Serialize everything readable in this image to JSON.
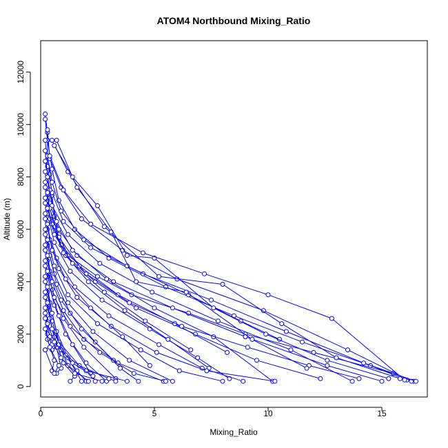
{
  "chart_data": {
    "type": "line",
    "title": "ATOM4 Northbound Mixing_Ratio",
    "xlabel": "Mixing_Ratio",
    "ylabel": "Altitude (m)",
    "xlim": [
      0,
      17
    ],
    "ylim": [
      -400,
      13200
    ],
    "xticks": [
      0,
      5,
      10,
      15
    ],
    "yticks": [
      0,
      2000,
      4000,
      6000,
      8000,
      10000,
      12000
    ],
    "color": "#0000FF",
    "markers": "open-circle",
    "grid": false,
    "series": [
      {
        "x": [
          0.2,
          0.3,
          0.3,
          0.4,
          0.5,
          0.6,
          0.8,
          1.2,
          2.5,
          4.0,
          6.5,
          9.0,
          12.0,
          15.5,
          16.4
        ],
        "y": [
          10400,
          9700,
          8800,
          8100,
          7300,
          6500,
          5800,
          5000,
          4200,
          3500,
          2800,
          2000,
          1300,
          500,
          200
        ]
      },
      {
        "x": [
          0.2,
          0.3,
          0.5,
          0.8,
          1.5,
          3.0,
          5.5,
          8.5,
          11.5,
          14.5,
          16.1
        ],
        "y": [
          10200,
          9400,
          8300,
          7100,
          6000,
          4900,
          3800,
          2700,
          1700,
          800,
          250
        ]
      },
      {
        "x": [
          0.3,
          0.4,
          0.9,
          1.8,
          3.6,
          6.0,
          9.8,
          13.5,
          16.3
        ],
        "y": [
          9800,
          8700,
          7600,
          6400,
          5200,
          4100,
          2900,
          1400,
          200
        ]
      },
      {
        "x": [
          0.2,
          0.3,
          0.5,
          1.0,
          2.2,
          4.5,
          7.5,
          10.8,
          14.2,
          16.5
        ],
        "y": [
          9400,
          8400,
          7400,
          6300,
          5300,
          4300,
          3300,
          2100,
          900,
          200
        ]
      },
      {
        "x": [
          0.2,
          0.3,
          0.4,
          0.8,
          1.6,
          3.2,
          5.8,
          9.0,
          12.6,
          15.0
        ],
        "y": [
          9000,
          8000,
          7000,
          6000,
          5000,
          4000,
          3000,
          1900,
          800,
          200
        ]
      },
      {
        "x": [
          0.3,
          0.5,
          0.9,
          1.9,
          3.8,
          6.5,
          8.8,
          10.5
        ],
        "y": [
          8800,
          7800,
          6700,
          5600,
          4600,
          3500,
          2500,
          1800
        ]
      },
      {
        "x": [
          0.2,
          0.4,
          0.7,
          1.4,
          2.9,
          5.0,
          7.6,
          10.2
        ],
        "y": [
          8600,
          7500,
          6300,
          5200,
          4100,
          3000,
          1900,
          200
        ]
      },
      {
        "x": [
          0.2,
          0.3,
          0.6,
          1.1,
          2.4,
          4.2,
          6.8,
          9.5,
          12.3
        ],
        "y": [
          8200,
          7200,
          6100,
          5000,
          4000,
          3000,
          2000,
          1000,
          300
        ]
      },
      {
        "x": [
          0.3,
          0.5,
          1.2,
          2.6,
          4.9,
          7.8,
          11.0,
          13.7
        ],
        "y": [
          8000,
          6900,
          5800,
          4700,
          3600,
          2500,
          1400,
          200
        ]
      },
      {
        "x": [
          0.2,
          0.4,
          0.8,
          1.7,
          3.4,
          5.9,
          8.2
        ],
        "y": [
          7800,
          6800,
          5700,
          4600,
          3500,
          2400,
          1300
        ]
      },
      {
        "x": [
          0.2,
          0.3,
          0.6,
          1.3,
          2.7,
          4.8,
          6.9,
          8.3
        ],
        "y": [
          7600,
          6600,
          5500,
          4400,
          3300,
          2200,
          1100,
          300
        ]
      },
      {
        "x": [
          0.3,
          0.4,
          0.9,
          2.0,
          3.9,
          6.2,
          9.1,
          11.8,
          14.0
        ],
        "y": [
          7400,
          6400,
          5400,
          4300,
          3200,
          2300,
          1500,
          800,
          300
        ]
      },
      {
        "x": [
          0.2,
          0.5,
          1.0,
          2.1,
          3.7,
          5.6,
          7.4
        ],
        "y": [
          7200,
          6200,
          5100,
          4000,
          2900,
          1800,
          700
        ]
      },
      {
        "x": [
          0.2,
          0.3,
          0.7,
          1.5,
          3.0,
          5.2,
          7.1,
          8.9
        ],
        "y": [
          7000,
          6000,
          4900,
          3800,
          2700,
          1600,
          700,
          200
        ]
      },
      {
        "x": [
          0.3,
          0.6,
          1.4,
          2.8,
          4.6,
          6.6
        ],
        "y": [
          6800,
          5800,
          4700,
          3600,
          2500,
          1400
        ]
      },
      {
        "x": [
          0.2,
          0.4,
          0.8,
          1.6,
          3.1,
          5.1,
          7.3,
          10.3
        ],
        "y": [
          6600,
          5600,
          4500,
          3400,
          2300,
          1300,
          600,
          200
        ]
      },
      {
        "x": [
          0.2,
          0.3,
          0.6,
          1.2,
          2.3,
          3.9,
          5.8
        ],
        "y": [
          6400,
          5400,
          4300,
          3200,
          2100,
          1000,
          200
        ]
      },
      {
        "x": [
          0.3,
          0.5,
          1.1,
          2.2,
          3.6,
          4.8
        ],
        "y": [
          6200,
          5200,
          4100,
          3000,
          1900,
          800
        ]
      },
      {
        "x": [
          0.2,
          0.4,
          0.7,
          1.3,
          2.4,
          3.5,
          4.3
        ],
        "y": [
          6000,
          5000,
          3900,
          2800,
          1700,
          700,
          200
        ]
      },
      {
        "x": [
          0.2,
          0.3,
          0.5,
          1.0,
          1.9,
          3.3
        ],
        "y": [
          5800,
          4800,
          3700,
          2600,
          1500,
          300
        ]
      },
      {
        "x": [
          0.3,
          0.6,
          1.2,
          2.5,
          4.4,
          6.1,
          8.0
        ],
        "y": [
          5600,
          4600,
          3500,
          2400,
          1400,
          600,
          200
        ]
      },
      {
        "x": [
          0.2,
          0.4,
          0.9,
          1.8,
          3.2
        ],
        "y": [
          5400,
          4400,
          3300,
          2200,
          1000
        ]
      },
      {
        "x": [
          0.2,
          0.3,
          0.6,
          1.1,
          2.0,
          2.9
        ],
        "y": [
          5200,
          4200,
          3100,
          2000,
          900,
          200
        ]
      },
      {
        "x": [
          0.3,
          0.5,
          1.0,
          1.9,
          3.4,
          5.4
        ],
        "y": [
          5000,
          4000,
          2900,
          1800,
          900,
          200
        ]
      },
      {
        "x": [
          0.2,
          0.4,
          0.8,
          1.4,
          2.2
        ],
        "y": [
          4800,
          3800,
          2700,
          1600,
          500
        ]
      },
      {
        "x": [
          0.2,
          0.3,
          0.5,
          0.9,
          1.6,
          2.0
        ],
        "y": [
          4600,
          3600,
          2500,
          1400,
          600,
          200
        ]
      },
      {
        "x": [
          0.3,
          0.6,
          1.3,
          2.6,
          4.1,
          5.5
        ],
        "y": [
          4400,
          3400,
          2300,
          1300,
          500,
          200
        ]
      },
      {
        "x": [
          0.2,
          0.4,
          0.7,
          1.2,
          1.8
        ],
        "y": [
          4200,
          3200,
          2100,
          1100,
          200
        ]
      },
      {
        "x": [
          0.2,
          0.3,
          0.6,
          1.0,
          1.5,
          1.3
        ],
        "y": [
          4000,
          3000,
          1900,
          900,
          400,
          200
        ]
      },
      {
        "x": [
          0.3,
          0.5,
          0.8,
          1.7,
          3.0,
          3.3
        ],
        "y": [
          3800,
          2800,
          1700,
          800,
          300,
          200
        ]
      },
      {
        "x": [
          0.2,
          0.4,
          0.7,
          0.9,
          0.7
        ],
        "y": [
          3600,
          2600,
          1500,
          700,
          500
        ]
      },
      {
        "x": [
          0.2,
          0.3,
          0.5,
          0.8,
          1.2,
          2.1
        ],
        "y": [
          3400,
          2400,
          1400,
          1600,
          800,
          200
        ]
      },
      {
        "x": [
          0.3,
          0.5,
          1.1,
          2.0,
          3.8
        ],
        "y": [
          3200,
          2200,
          1200,
          600,
          200
        ]
      },
      {
        "x": [
          0.2,
          0.3,
          0.5,
          0.2
        ],
        "y": [
          3000,
          2000,
          1600,
          1400
        ]
      },
      {
        "x": [
          0.2,
          0.4,
          0.9,
          1.5,
          2.7
        ],
        "y": [
          2800,
          1900,
          1100,
          500,
          200
        ]
      },
      {
        "x": [
          0.2,
          0.3,
          0.6,
          0.5
        ],
        "y": [
          2600,
          1800,
          1000,
          600
        ]
      },
      {
        "x": [
          0.3,
          0.6,
          1.4,
          2.3,
          2.4
        ],
        "y": [
          2400,
          1700,
          900,
          400,
          200
        ]
      },
      {
        "x": [
          0.2,
          0.4,
          0.8,
          0.6,
          0.2
        ],
        "y": [
          2200,
          1500,
          800,
          500,
          1400
        ]
      },
      {
        "x": [
          0.5,
          1.2,
          2.8,
          5.2,
          8.0,
          10.6,
          13.0,
          15.8
        ],
        "y": [
          9400,
          8200,
          6100,
          4200,
          3900,
          2400,
          1100,
          300
        ]
      },
      {
        "x": [
          0.7,
          1.6,
          3.1,
          4.2,
          6.4,
          9.3,
          11.7
        ],
        "y": [
          9400,
          7600,
          5900,
          4000,
          3600,
          1800,
          700
        ]
      },
      {
        "x": [
          0.6,
          1.4,
          2.5,
          3.8,
          5.0,
          7.6,
          9.9,
          12.6,
          15.3
        ],
        "y": [
          9200,
          8000,
          6900,
          5000,
          4900,
          3000,
          2000,
          1000,
          300
        ]
      },
      {
        "x": [
          0.4,
          1.0,
          2.2,
          4.5,
          7.2,
          10.0,
          12.8,
          16.0
        ],
        "y": [
          8800,
          7500,
          6200,
          5100,
          4300,
          3500,
          2600,
          250
        ]
      }
    ]
  }
}
